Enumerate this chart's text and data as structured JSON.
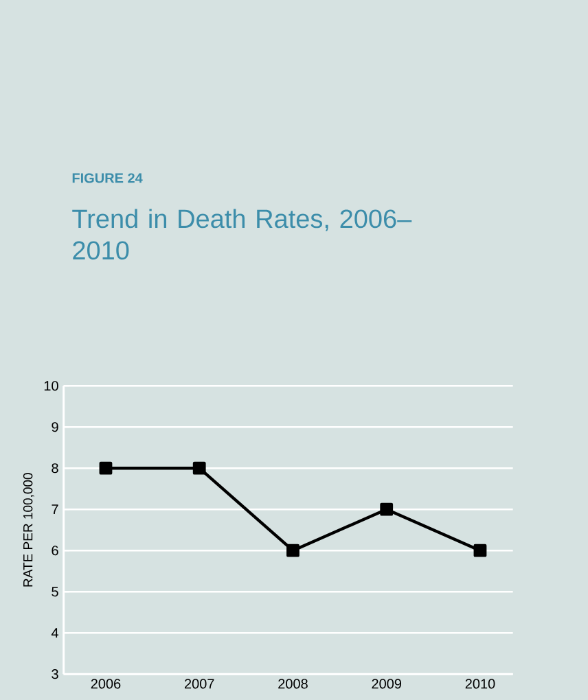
{
  "chart_data": {
    "type": "line",
    "title": "Trend in Death Rates, 2006–2010",
    "annotations": [
      "FIGURE 24"
    ],
    "ylabel": "RATE PER 100,000",
    "categories": [
      "2006",
      "2007",
      "2008",
      "2009",
      "2010"
    ],
    "series": [
      {
        "color": "#000000",
        "values": [
          8,
          8,
          6,
          7,
          6
        ]
      }
    ],
    "ylim": [
      3,
      10
    ],
    "yticks": [
      3,
      4,
      5,
      6,
      7,
      8,
      9,
      10
    ],
    "grid": "y",
    "marker": "square",
    "line_style": "solid"
  }
}
